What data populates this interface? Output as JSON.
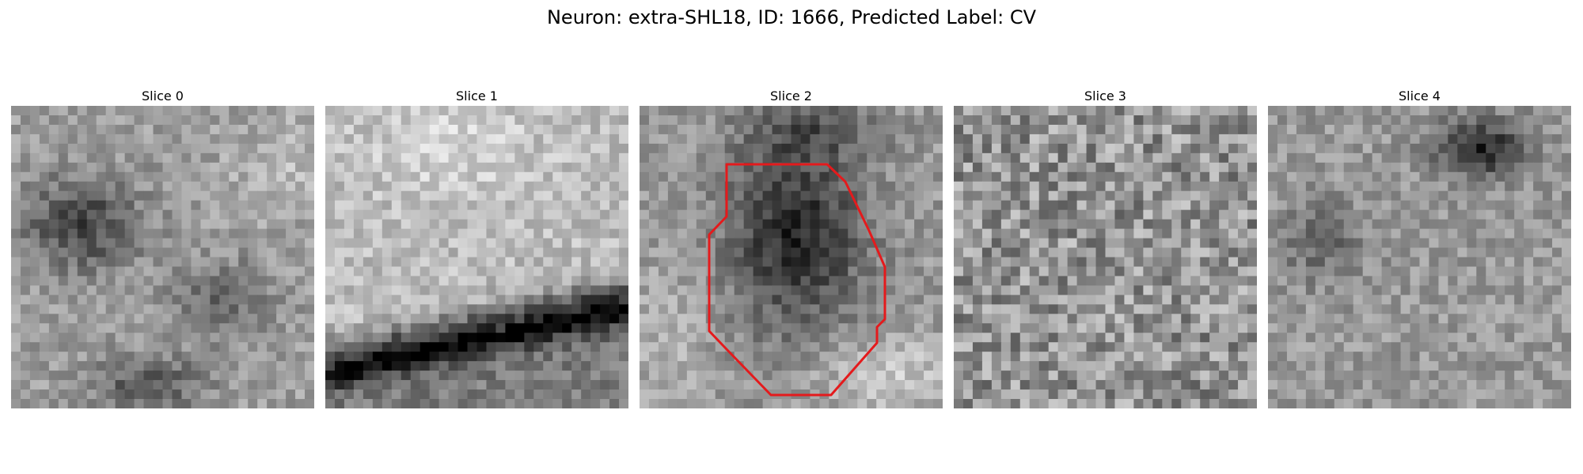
{
  "figure": {
    "title": "Neuron: extra-SHL18, ID: 1666, Predicted Label: CV"
  },
  "panels": [
    {
      "title": "Slice 0",
      "seed": 11,
      "pattern": "slice0"
    },
    {
      "title": "Slice 1",
      "seed": 23,
      "pattern": "slice1"
    },
    {
      "title": "Slice 2",
      "seed": 37,
      "pattern": "slice2",
      "outline_color": "#e41a1c"
    },
    {
      "title": "Slice 3",
      "seed": 51,
      "pattern": "slice3"
    },
    {
      "title": "Slice 4",
      "seed": 67,
      "pattern": "slice4"
    }
  ]
}
